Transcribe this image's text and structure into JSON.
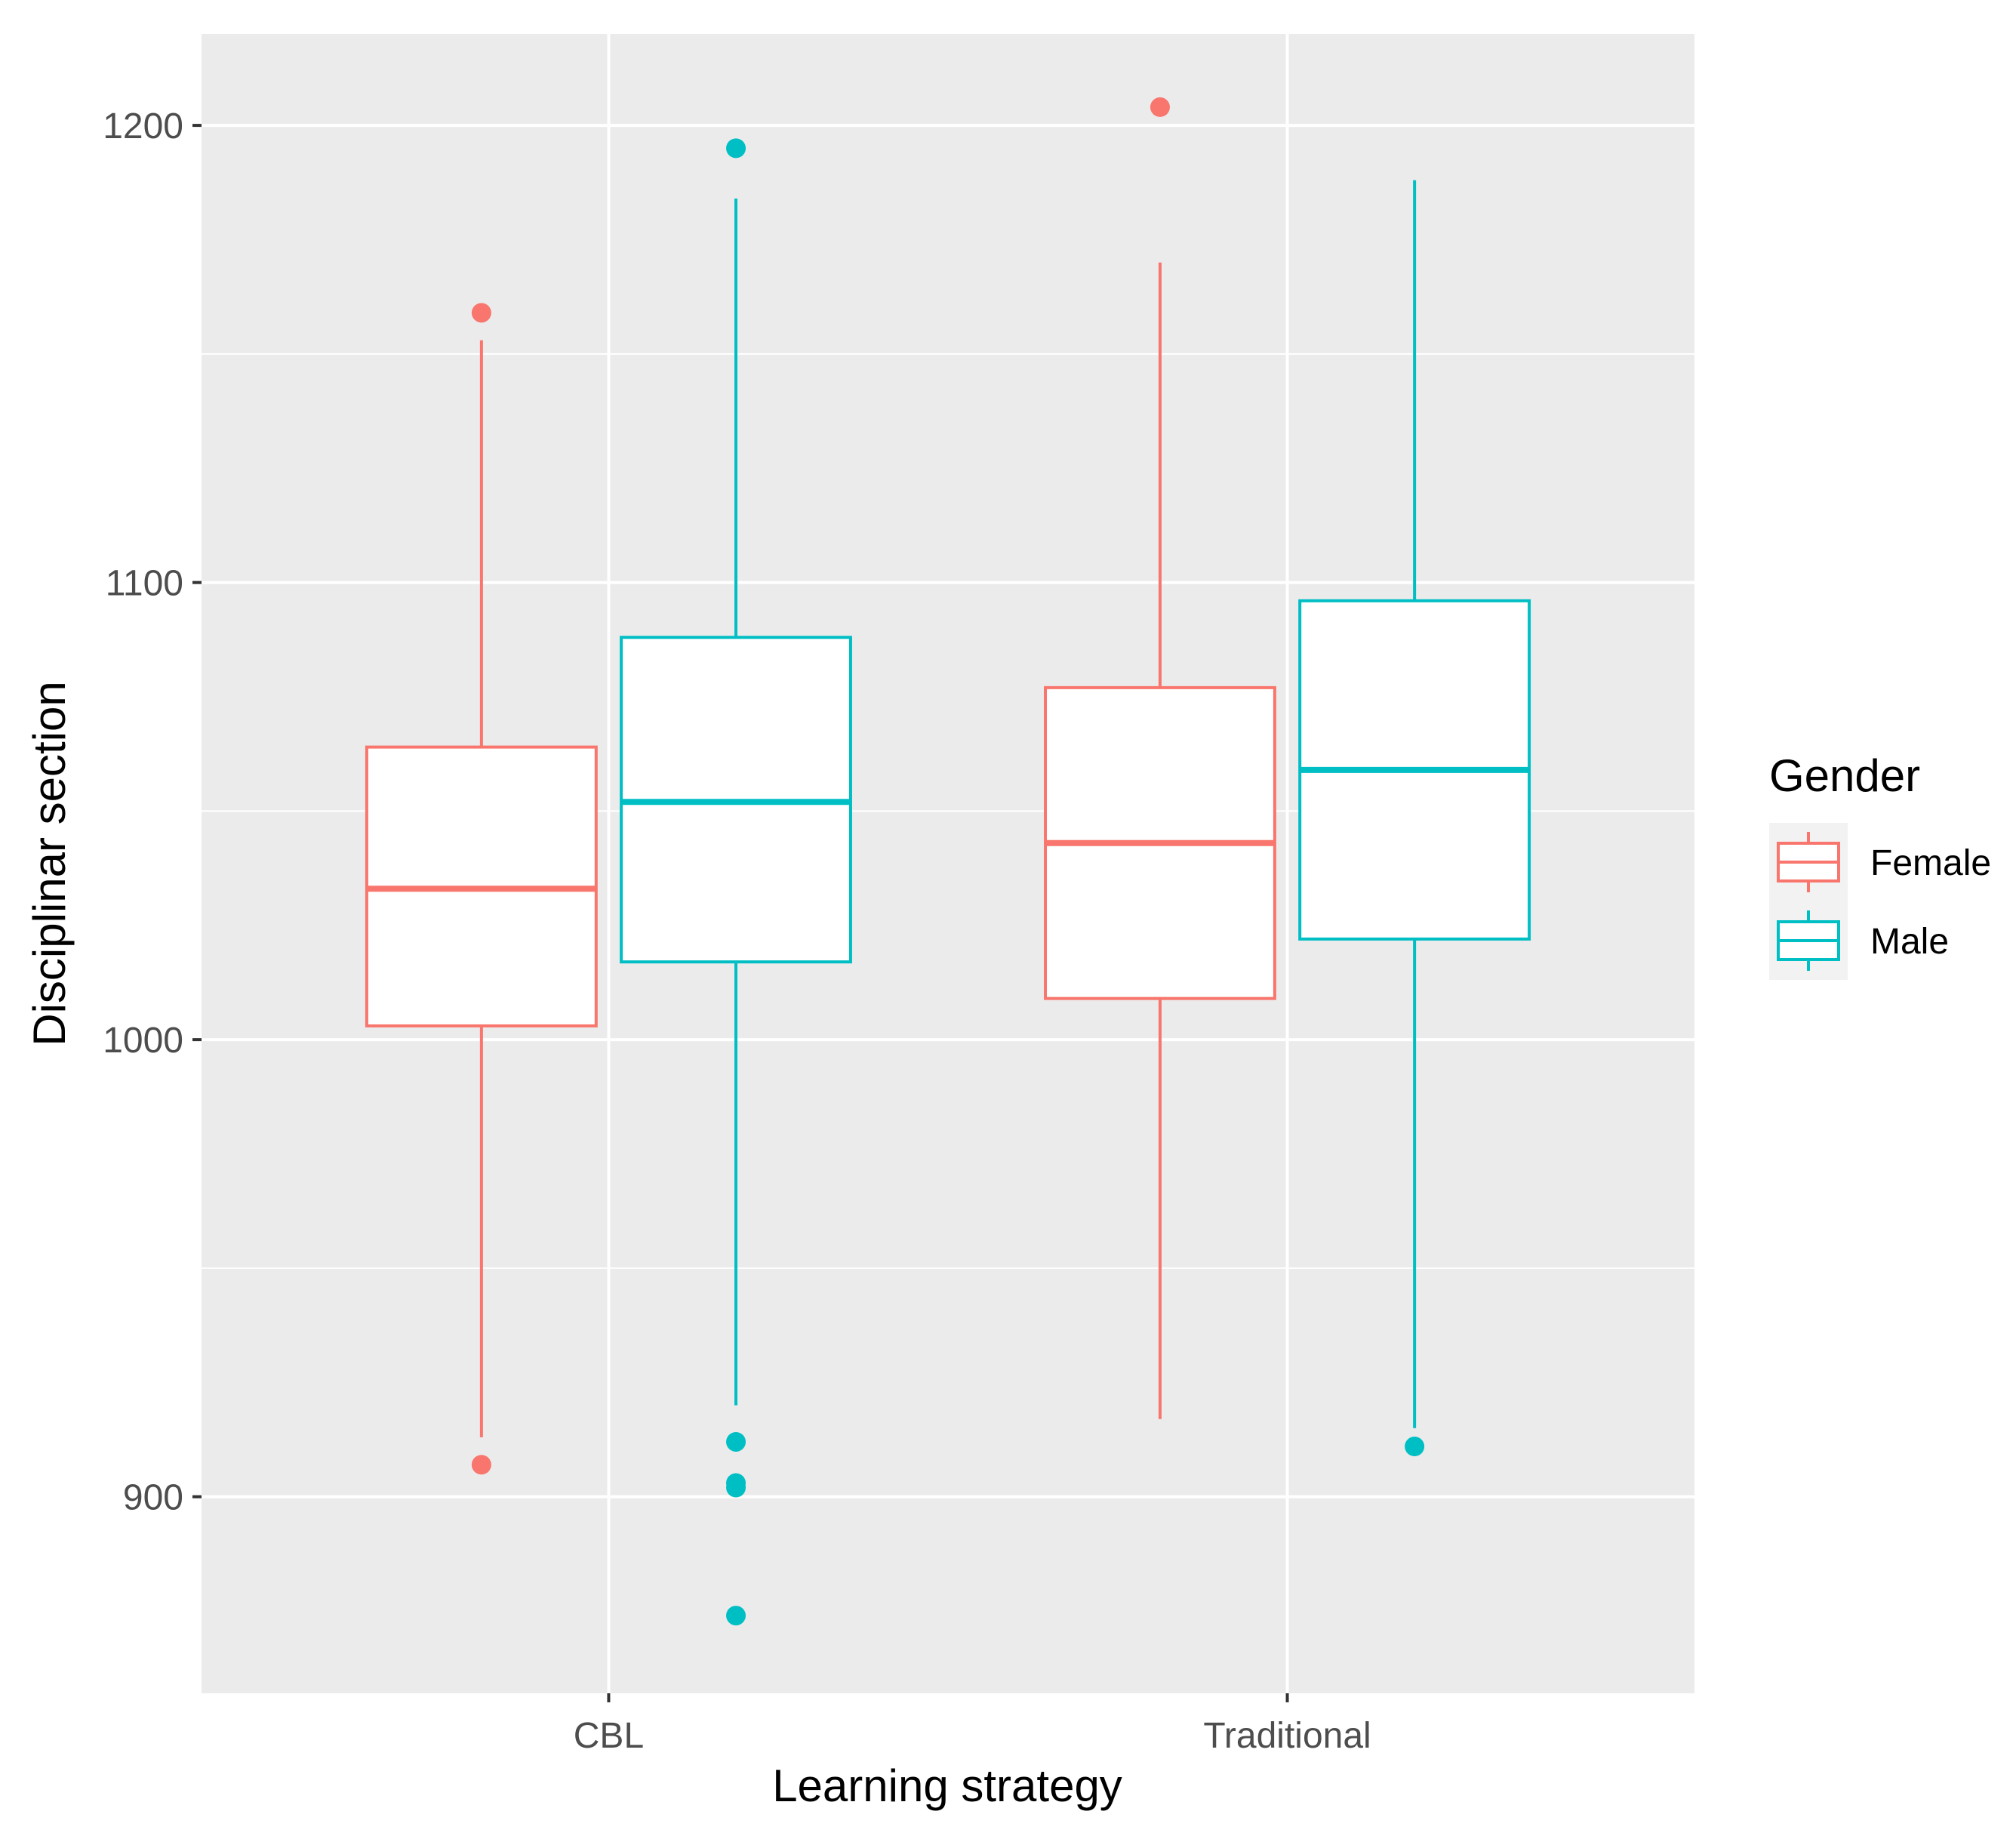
{
  "chart_data": {
    "type": "boxplot",
    "xlabel": "Learning strategy",
    "ylabel": "Disciplinar section",
    "ylim": [
      857,
      1220
    ],
    "y_ticks": [
      900,
      1000,
      1100,
      1200
    ],
    "y_tick_labels": [
      "900",
      "1000",
      "1100",
      "1200"
    ],
    "y_minor_ticks": [
      950,
      1050,
      1150
    ],
    "categories": [
      "CBL",
      "Traditional"
    ],
    "grid": true,
    "legend": {
      "title": "Gender",
      "placement": "right",
      "entries": [
        {
          "name": "Female",
          "color": "#F8766D"
        },
        {
          "name": "Male",
          "color": "#00BFC4"
        }
      ]
    },
    "series": [
      {
        "name": "Female",
        "color": "#F8766D",
        "boxes": [
          {
            "category": "CBL",
            "whisker_low": 913,
            "q1": 1003,
            "median": 1033,
            "q3": 1064,
            "whisker_high": 1153,
            "outliers": [
              907,
              1159
            ]
          },
          {
            "category": "Traditional",
            "whisker_low": 917,
            "q1": 1009,
            "median": 1043,
            "q3": 1077,
            "whisker_high": 1170,
            "outliers": [
              1204
            ]
          }
        ]
      },
      {
        "name": "Male",
        "color": "#00BFC4",
        "boxes": [
          {
            "category": "CBL",
            "whisker_low": 920,
            "q1": 1017,
            "median": 1052,
            "q3": 1088,
            "whisker_high": 1184,
            "outliers": [
              874,
              902,
              903,
              912,
              1195
            ]
          },
          {
            "category": "Traditional",
            "whisker_low": 915,
            "q1": 1022,
            "median": 1059,
            "q3": 1096,
            "whisker_high": 1188,
            "outliers": [
              911
            ]
          }
        ]
      }
    ]
  }
}
